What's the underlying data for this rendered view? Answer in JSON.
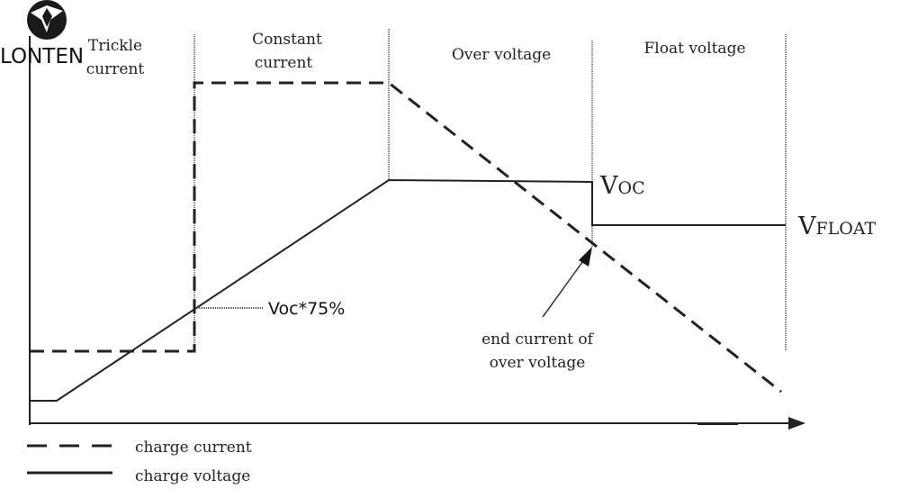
{
  "logo": {
    "text": "LONTEN"
  },
  "phases": [
    {
      "line1": "Trickle",
      "line2": "current"
    },
    {
      "line1": "Constant",
      "line2": "current"
    },
    {
      "line1": "Over voltage",
      "line2": ""
    },
    {
      "line1": "Float voltage",
      "line2": ""
    }
  ],
  "annotations": {
    "voc75": "Voc*75%",
    "voc_v": "V",
    "voc_sub": "OC",
    "vfloat_v": "V",
    "vfloat_sub": "FLOAT",
    "end_current_line1": "end current of",
    "end_current_line2": "over voltage"
  },
  "legend": [
    {
      "label": "charge current",
      "style": "dashed"
    },
    {
      "label": "charge voltage",
      "style": "solid"
    }
  ],
  "colors": {
    "line": "#222222",
    "logo": "#1a1a1a"
  }
}
